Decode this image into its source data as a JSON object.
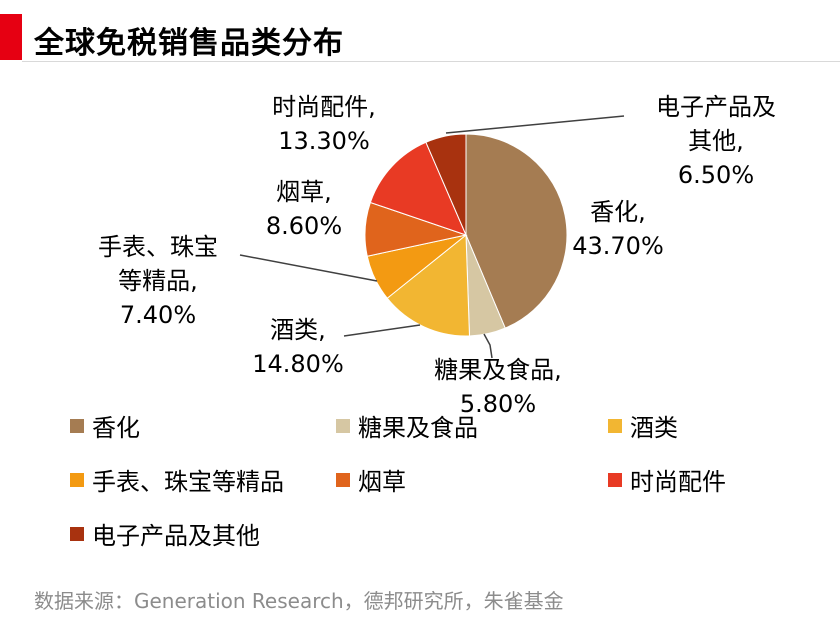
{
  "header": {
    "title": "全球免税销售品类分布"
  },
  "colors": {
    "accent": "#e60012",
    "slices": [
      "#a57c52",
      "#d6c7a3",
      "#f2b632",
      "#f39a12",
      "#e0641c",
      "#e83a24",
      "#a8320f"
    ]
  },
  "chart_data": {
    "type": "pie",
    "title": "",
    "slices": [
      {
        "name": "香化",
        "value": 43.7,
        "label_lines": [
          "香化,",
          "43.70%"
        ]
      },
      {
        "name": "糖果及食品",
        "value": 5.8,
        "label_lines": [
          "糖果及食品,",
          "5.80%"
        ]
      },
      {
        "name": "酒类",
        "value": 14.8,
        "label_lines": [
          "酒类,",
          "14.80%"
        ]
      },
      {
        "name": "手表、珠宝等精品",
        "value": 7.4,
        "label_lines": [
          "手表、珠宝",
          "等精品,",
          "7.40%"
        ]
      },
      {
        "name": "烟草",
        "value": 8.6,
        "label_lines": [
          "烟草,",
          "8.60%"
        ]
      },
      {
        "name": "时尚配件",
        "value": 13.3,
        "label_lines": [
          "时尚配件,",
          "13.30%"
        ]
      },
      {
        "name": "电子产品及其他",
        "value": 6.5,
        "label_lines": [
          "电子产品及",
          "其他,",
          "6.50%"
        ]
      }
    ],
    "legend": "bottom"
  },
  "legend": {
    "items": [
      "香化",
      "糖果及食品",
      "酒类",
      "手表、珠宝等精品",
      "烟草",
      "时尚配件",
      "电子产品及其他"
    ]
  },
  "footer": {
    "source": "数据来源：Generation Research，德邦研究所，朱雀基金"
  }
}
